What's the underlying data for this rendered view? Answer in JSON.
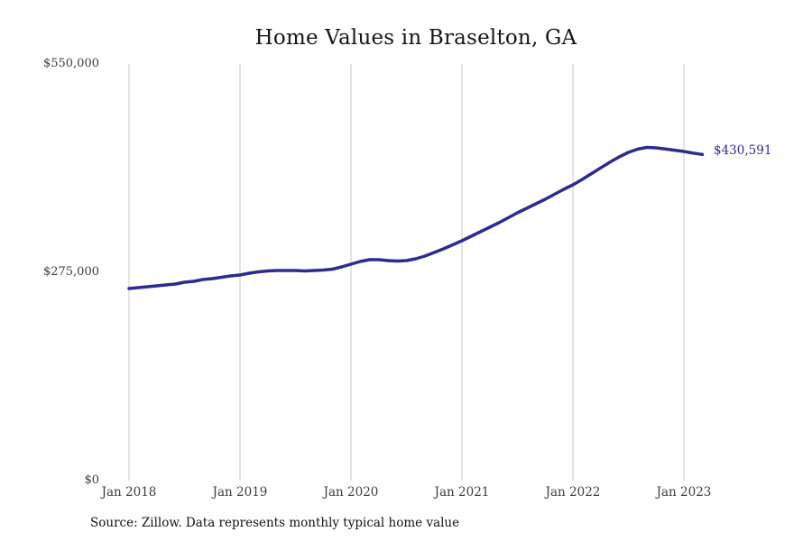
{
  "title": "Home Values in Braselton, GA",
  "source_note": "Source: Zillow. Data represents monthly typical home value",
  "annotation": {
    "end_value_label": "$430,591"
  },
  "colors": {
    "line": "#2e2b8d",
    "grid": "#c8c8c8",
    "title_text": "#161616",
    "axis_text": "#3d3d3d",
    "annotation_text": "#2e2b8d"
  },
  "chart_data": {
    "type": "line",
    "title": "Home Values in Braselton, GA",
    "xlabel": "",
    "ylabel": "",
    "legend": "none",
    "grid": "vertical-only",
    "ylim": [
      0,
      550000
    ],
    "y_tick_labels": [
      "$0",
      "$275,000",
      "$550,000"
    ],
    "x_tick_labels": [
      "Jan 2018",
      "Jan 2019",
      "Jan 2020",
      "Jan 2021",
      "Jan 2022",
      "Jan 2023"
    ],
    "frequency": "monthly",
    "start_month": "Jan 2018",
    "end_month": "Mar 2023",
    "end_value": 430591,
    "values": [
      253600,
      254800,
      256000,
      257100,
      258300,
      259500,
      261900,
      263100,
      265500,
      266700,
      268500,
      270200,
      271400,
      273800,
      275600,
      276800,
      277400,
      277400,
      277400,
      276800,
      277400,
      278000,
      279200,
      282100,
      285700,
      289300,
      291700,
      291700,
      290500,
      289900,
      290500,
      292900,
      296400,
      301200,
      306000,
      311300,
      316700,
      322600,
      328600,
      334500,
      340500,
      347000,
      353600,
      359500,
      365500,
      371400,
      378000,
      384500,
      390500,
      397600,
      405200,
      412900,
      420300,
      427400,
      433300,
      437600,
      439900,
      439300,
      437800,
      436200,
      434500,
      432400,
      430591
    ]
  }
}
